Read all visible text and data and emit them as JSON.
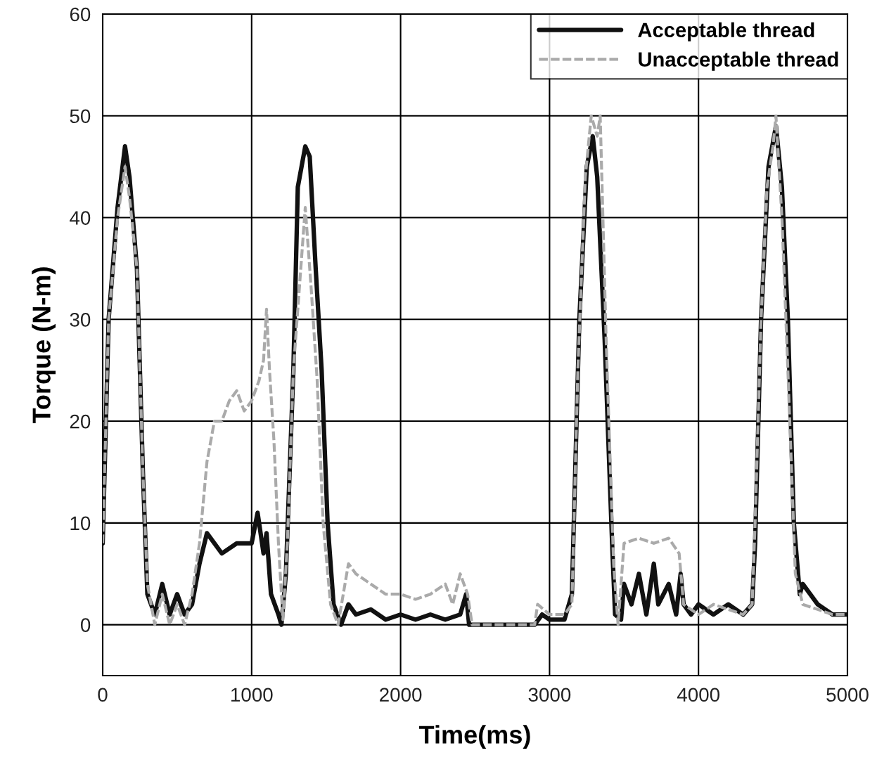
{
  "chart_data": {
    "type": "line",
    "xlabel": "Time(ms)",
    "ylabel": "Torque (N-m)",
    "xlim": [
      0,
      5000
    ],
    "ylim": [
      -5,
      60
    ],
    "xticks": [
      0,
      1000,
      2000,
      3000,
      4000,
      5000
    ],
    "yticks": [
      0,
      10,
      20,
      30,
      40,
      50,
      60
    ],
    "grid": true,
    "legend": "top right",
    "series": [
      {
        "name": "Acceptable thread",
        "color": "#111111",
        "line_style": "solid",
        "x": [
          0,
          40,
          100,
          150,
          180,
          230,
          270,
          300,
          350,
          400,
          450,
          500,
          550,
          600,
          650,
          700,
          800,
          900,
          1000,
          1040,
          1080,
          1100,
          1130,
          1180,
          1200,
          1230,
          1280,
          1310,
          1360,
          1390,
          1430,
          1470,
          1510,
          1550,
          1600,
          1650,
          1700,
          1800,
          1900,
          2000,
          2100,
          2200,
          2300,
          2400,
          2440,
          2460,
          2900,
          2950,
          3000,
          3100,
          3150,
          3200,
          3250,
          3290,
          3320,
          3370,
          3420,
          3440,
          3480,
          3500,
          3550,
          3600,
          3650,
          3700,
          3730,
          3800,
          3850,
          3880,
          3900,
          3950,
          4000,
          4100,
          4200,
          4300,
          4360,
          4380,
          4420,
          4470,
          4520,
          4560,
          4600,
          4640,
          4680,
          4700,
          4800,
          4900,
          5000
        ],
        "values": [
          8,
          30,
          41,
          47,
          44,
          35,
          15,
          3,
          1,
          4,
          1,
          3,
          1,
          2,
          6,
          9,
          7,
          8,
          8,
          11,
          7,
          9,
          3,
          1,
          0,
          5,
          25,
          43,
          47,
          46,
          35,
          25,
          10,
          2,
          0,
          2,
          1,
          1.5,
          0.5,
          1,
          0.5,
          1,
          0.5,
          1,
          3,
          0,
          0,
          1,
          0.5,
          0.5,
          3,
          30,
          45,
          48,
          44,
          28,
          8,
          1,
          0.5,
          4,
          2,
          5,
          1,
          6,
          2,
          4,
          1,
          5,
          2,
          1,
          2,
          1,
          2,
          1,
          2,
          8,
          30,
          45,
          49,
          43,
          30,
          10,
          3,
          4,
          2,
          1,
          1
        ]
      },
      {
        "name": "Unacceptable thread",
        "color": "#aaaaaa",
        "line_style": "dashed",
        "x": [
          0,
          40,
          100,
          150,
          180,
          230,
          270,
          300,
          350,
          400,
          450,
          500,
          550,
          600,
          650,
          700,
          750,
          800,
          850,
          900,
          950,
          1000,
          1050,
          1080,
          1100,
          1120,
          1150,
          1180,
          1210,
          1240,
          1280,
          1330,
          1360,
          1400,
          1440,
          1480,
          1530,
          1580,
          1650,
          1700,
          1800,
          1900,
          2000,
          2100,
          2200,
          2300,
          2350,
          2400,
          2450,
          2480,
          2900,
          2920,
          3000,
          3100,
          3150,
          3190,
          3240,
          3280,
          3320,
          3340,
          3380,
          3430,
          3460,
          3500,
          3600,
          3700,
          3800,
          3870,
          3900,
          4000,
          4100,
          4200,
          4300,
          4360,
          4380,
          4420,
          4460,
          4500,
          4520,
          4560,
          4600,
          4650,
          4700,
          4800,
          4900,
          5000
        ],
        "values": [
          8,
          30,
          40,
          45,
          42,
          35,
          15,
          4,
          0,
          3,
          0,
          2,
          0,
          3,
          8,
          16,
          20,
          20,
          22,
          23,
          21,
          22,
          24,
          26,
          31,
          25,
          18,
          8,
          0.5,
          8,
          25,
          35,
          41,
          33,
          24,
          10,
          2,
          0,
          6,
          5,
          4,
          3,
          3,
          2.5,
          3,
          4,
          2,
          5,
          3,
          0,
          0,
          2,
          1,
          1,
          2,
          25,
          44,
          50,
          48,
          50,
          28,
          6,
          0,
          8,
          8.5,
          8,
          8.5,
          7,
          2,
          1,
          2,
          1.5,
          1,
          2,
          10,
          30,
          43,
          47,
          50,
          40,
          25,
          5,
          2,
          1.5,
          1,
          1
        ]
      }
    ]
  }
}
